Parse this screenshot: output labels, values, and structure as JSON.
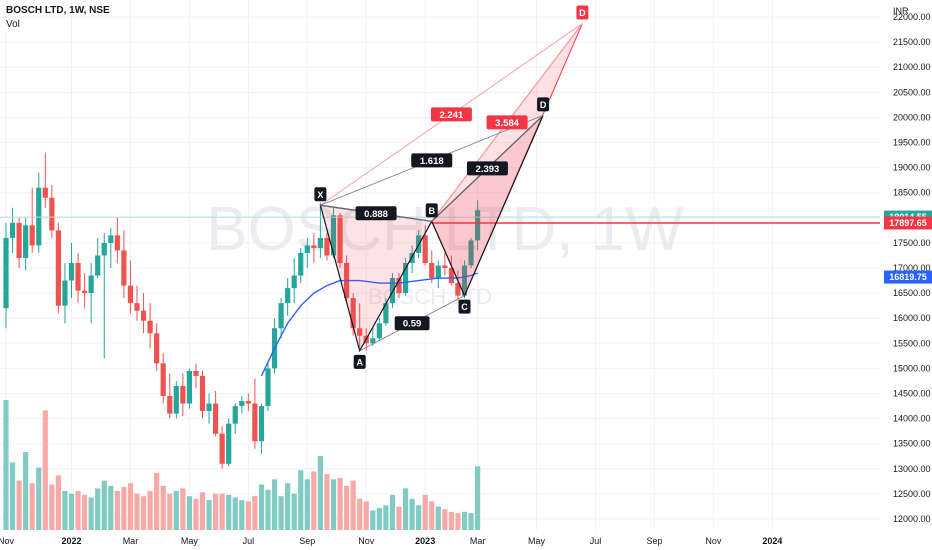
{
  "header": {
    "symbol_line": "BOSCH LTD, 1W, NSE",
    "volume_label": "Vol",
    "currency": "INR",
    "watermark": "BOSCH LTD, 1W",
    "sub_watermark": "BOSCH LTD"
  },
  "chart_data": {
    "type": "candlestick",
    "title": "BOSCH LTD, 1W, NSE",
    "ylabel": "INR",
    "ylim": [
      11800,
      22300
    ],
    "y_ticks": [
      12000,
      12500,
      13000,
      13500,
      14000,
      14500,
      15000,
      15500,
      16000,
      16500,
      17000,
      17500,
      18000,
      18500,
      19000,
      19500,
      20000,
      20500,
      21000,
      21500,
      22000
    ],
    "x_tick_labels": [
      "Nov",
      "2022",
      "Mar",
      "May",
      "Jul",
      "Sep",
      "Nov",
      "2023",
      "Mar",
      "May",
      "Jul",
      "Sep",
      "Nov",
      "2024"
    ],
    "x_tick_positions": [
      -58,
      -48,
      -39,
      -30,
      -21,
      -12,
      -3,
      6,
      14,
      23,
      32,
      41,
      50,
      59
    ],
    "grid": true,
    "colors": {
      "up": "#26a69a",
      "down": "#ef5350",
      "vol_up": "#80cbc4",
      "vol_down": "#f7a9a7",
      "ma": "#2962ff",
      "pattern_black": "#131722",
      "pattern_red": "#f23645",
      "price_line": "#f23645"
    },
    "candles": [
      {
        "o": 16200,
        "h": 17900,
        "l": 15800,
        "c": 17600,
        "v": 100
      },
      {
        "o": 17600,
        "h": 18200,
        "l": 17300,
        "c": 17900,
        "v": 52
      },
      {
        "o": 17900,
        "h": 18000,
        "l": 17000,
        "c": 17200,
        "v": 38
      },
      {
        "o": 17200,
        "h": 18000,
        "l": 16950,
        "c": 17850,
        "v": 60
      },
      {
        "o": 17850,
        "h": 18600,
        "l": 17300,
        "c": 17450,
        "v": 36
      },
      {
        "o": 17450,
        "h": 18900,
        "l": 17300,
        "c": 18600,
        "v": 48
      },
      {
        "o": 18600,
        "h": 19300,
        "l": 18200,
        "c": 18400,
        "v": 92
      },
      {
        "o": 18400,
        "h": 18650,
        "l": 17600,
        "c": 17750,
        "v": 35
      },
      {
        "o": 17750,
        "h": 17900,
        "l": 16100,
        "c": 16250,
        "v": 42
      },
      {
        "o": 16250,
        "h": 17100,
        "l": 15900,
        "c": 16750,
        "v": 30
      },
      {
        "o": 16750,
        "h": 17500,
        "l": 16400,
        "c": 17100,
        "v": 28
      },
      {
        "o": 17100,
        "h": 17300,
        "l": 16300,
        "c": 16550,
        "v": 30
      },
      {
        "o": 16550,
        "h": 16900,
        "l": 16200,
        "c": 16500,
        "v": 27
      },
      {
        "o": 16500,
        "h": 17100,
        "l": 15900,
        "c": 16850,
        "v": 25
      },
      {
        "o": 16850,
        "h": 17600,
        "l": 16800,
        "c": 17250,
        "v": 32
      },
      {
        "o": 17250,
        "h": 17700,
        "l": 15200,
        "c": 17500,
        "v": 38
      },
      {
        "o": 17500,
        "h": 17800,
        "l": 17000,
        "c": 17650,
        "v": 34
      },
      {
        "o": 17650,
        "h": 18000,
        "l": 17100,
        "c": 17350,
        "v": 30
      },
      {
        "o": 17350,
        "h": 17750,
        "l": 16400,
        "c": 16650,
        "v": 33
      },
      {
        "o": 16650,
        "h": 17150,
        "l": 16100,
        "c": 16300,
        "v": 36
      },
      {
        "o": 16300,
        "h": 16650,
        "l": 15950,
        "c": 16150,
        "v": 28
      },
      {
        "o": 16150,
        "h": 16500,
        "l": 15700,
        "c": 15950,
        "v": 26
      },
      {
        "o": 15950,
        "h": 16300,
        "l": 15400,
        "c": 15700,
        "v": 30
      },
      {
        "o": 15700,
        "h": 15900,
        "l": 14950,
        "c": 15100,
        "v": 44
      },
      {
        "o": 15100,
        "h": 15300,
        "l": 14300,
        "c": 14450,
        "v": 34
      },
      {
        "o": 14450,
        "h": 14900,
        "l": 14000,
        "c": 14100,
        "v": 28
      },
      {
        "o": 14100,
        "h": 14750,
        "l": 14000,
        "c": 14650,
        "v": 30
      },
      {
        "o": 14650,
        "h": 14900,
        "l": 14050,
        "c": 14300,
        "v": 32
      },
      {
        "o": 14300,
        "h": 15000,
        "l": 14200,
        "c": 14950,
        "v": 26
      },
      {
        "o": 14950,
        "h": 15100,
        "l": 14600,
        "c": 14850,
        "v": 24
      },
      {
        "o": 14850,
        "h": 14950,
        "l": 14000,
        "c": 14150,
        "v": 29
      },
      {
        "o": 14150,
        "h": 14500,
        "l": 13900,
        "c": 14300,
        "v": 23
      },
      {
        "o": 14300,
        "h": 14550,
        "l": 13650,
        "c": 13700,
        "v": 28
      },
      {
        "o": 13700,
        "h": 13850,
        "l": 13000,
        "c": 13100,
        "v": 28
      },
      {
        "o": 13100,
        "h": 14000,
        "l": 13050,
        "c": 13900,
        "v": 27
      },
      {
        "o": 13900,
        "h": 14300,
        "l": 13700,
        "c": 14250,
        "v": 25
      },
      {
        "o": 14250,
        "h": 14450,
        "l": 14100,
        "c": 14350,
        "v": 23
      },
      {
        "o": 14350,
        "h": 14500,
        "l": 14150,
        "c": 14300,
        "v": 22
      },
      {
        "o": 14300,
        "h": 14800,
        "l": 13400,
        "c": 13550,
        "v": 26
      },
      {
        "o": 13550,
        "h": 14300,
        "l": 13300,
        "c": 14250,
        "v": 35
      },
      {
        "o": 14250,
        "h": 15100,
        "l": 14150,
        "c": 15000,
        "v": 31
      },
      {
        "o": 15000,
        "h": 16000,
        "l": 14900,
        "c": 15800,
        "v": 39
      },
      {
        "o": 15800,
        "h": 16400,
        "l": 15600,
        "c": 16300,
        "v": 26
      },
      {
        "o": 16300,
        "h": 16800,
        "l": 16050,
        "c": 16600,
        "v": 36
      },
      {
        "o": 16600,
        "h": 17200,
        "l": 16300,
        "c": 16850,
        "v": 28
      },
      {
        "o": 16850,
        "h": 17400,
        "l": 16700,
        "c": 17300,
        "v": 46
      },
      {
        "o": 17300,
        "h": 17600,
        "l": 17000,
        "c": 17450,
        "v": 39
      },
      {
        "o": 17450,
        "h": 17700,
        "l": 17100,
        "c": 17400,
        "v": 45
      },
      {
        "o": 17400,
        "h": 18300,
        "l": 17200,
        "c": 17600,
        "v": 57
      },
      {
        "o": 17600,
        "h": 17700,
        "l": 17150,
        "c": 17250,
        "v": 43
      },
      {
        "o": 17250,
        "h": 18200,
        "l": 17200,
        "c": 18050,
        "v": 39
      },
      {
        "o": 18050,
        "h": 18100,
        "l": 17000,
        "c": 17100,
        "v": 40
      },
      {
        "o": 17100,
        "h": 17250,
        "l": 16300,
        "c": 16400,
        "v": 34
      },
      {
        "o": 16400,
        "h": 16500,
        "l": 15650,
        "c": 15800,
        "v": 38
      },
      {
        "o": 15800,
        "h": 16300,
        "l": 15400,
        "c": 15650,
        "v": 24
      },
      {
        "o": 15650,
        "h": 15800,
        "l": 15350,
        "c": 15500,
        "v": 22
      },
      {
        "o": 15500,
        "h": 15800,
        "l": 15450,
        "c": 15600,
        "v": 15
      },
      {
        "o": 15600,
        "h": 16000,
        "l": 15550,
        "c": 15900,
        "v": 17
      },
      {
        "o": 15900,
        "h": 16400,
        "l": 15850,
        "c": 16300,
        "v": 19
      },
      {
        "o": 16300,
        "h": 16900,
        "l": 16200,
        "c": 16800,
        "v": 27
      },
      {
        "o": 16800,
        "h": 16900,
        "l": 16400,
        "c": 16500,
        "v": 18
      },
      {
        "o": 16500,
        "h": 17200,
        "l": 16450,
        "c": 17100,
        "v": 32
      },
      {
        "o": 17100,
        "h": 17450,
        "l": 16900,
        "c": 17300,
        "v": 24
      },
      {
        "o": 17300,
        "h": 17750,
        "l": 17200,
        "c": 17650,
        "v": 19
      },
      {
        "o": 17650,
        "h": 17850,
        "l": 17050,
        "c": 17100,
        "v": 27
      },
      {
        "o": 17100,
        "h": 17350,
        "l": 16700,
        "c": 16800,
        "v": 22
      },
      {
        "o": 16800,
        "h": 17150,
        "l": 16600,
        "c": 17050,
        "v": 18
      },
      {
        "o": 17050,
        "h": 17300,
        "l": 16850,
        "c": 17000,
        "v": 16
      },
      {
        "o": 17000,
        "h": 17250,
        "l": 16650,
        "c": 16700,
        "v": 14
      },
      {
        "o": 16700,
        "h": 16950,
        "l": 16350,
        "c": 16450,
        "v": 13
      },
      {
        "o": 16450,
        "h": 17150,
        "l": 16400,
        "c": 17050,
        "v": 14
      },
      {
        "o": 17050,
        "h": 17600,
        "l": 17000,
        "c": 17550,
        "v": 13
      },
      {
        "o": 17550,
        "h": 18350,
        "l": 17350,
        "c": 18150,
        "v": 49
      }
    ],
    "moving_average": [
      {
        "i": 39,
        "v": 14850
      },
      {
        "i": 41,
        "v": 15400
      },
      {
        "i": 43,
        "v": 15900
      },
      {
        "i": 45,
        "v": 16250
      },
      {
        "i": 47,
        "v": 16500
      },
      {
        "i": 49,
        "v": 16650
      },
      {
        "i": 51,
        "v": 16750
      },
      {
        "i": 54,
        "v": 16750
      },
      {
        "i": 57,
        "v": 16700
      },
      {
        "i": 60,
        "v": 16700
      },
      {
        "i": 63,
        "v": 16750
      },
      {
        "i": 66,
        "v": 16800
      },
      {
        "i": 69,
        "v": 16800
      },
      {
        "i": 71,
        "v": 16850
      },
      {
        "i": 72,
        "v": 16900
      }
    ],
    "last_price": 17897.65,
    "price_labels": [
      {
        "text": "18014.55",
        "value": 18014.55,
        "color": "#26a69a"
      },
      {
        "text": "17897.65",
        "value": 17897.65,
        "color": "#f23645"
      },
      {
        "text": "16819.75",
        "value": 16819.75,
        "color": "#2962ff"
      }
    ],
    "reference_line_value": 18014.55,
    "pattern_black": {
      "points": [
        {
          "name": "X",
          "i": 48,
          "p": 18250
        },
        {
          "name": "A",
          "i": 54,
          "p": 15350
        },
        {
          "name": "B",
          "i": 65,
          "p": 17930
        },
        {
          "name": "C",
          "i": 70,
          "p": 16450
        },
        {
          "name": "D",
          "i": 82,
          "p": 20040
        }
      ],
      "ratios": [
        {
          "text": "0.888",
          "from": "X",
          "to": "B"
        },
        {
          "text": "0.59",
          "from": "A",
          "to": "C"
        },
        {
          "text": "1.618",
          "from": "X",
          "to": "D"
        },
        {
          "text": "2.393",
          "from": "B",
          "to": "D"
        }
      ]
    },
    "pattern_red": {
      "points": [
        {
          "name": "X",
          "i": 48,
          "p": 18250
        },
        {
          "name": "B",
          "i": 65,
          "p": 17930
        },
        {
          "name": "C",
          "i": 70,
          "p": 16450
        },
        {
          "name": "D",
          "i": 88,
          "p": 21870
        }
      ],
      "ratios": [
        {
          "text": "2.241",
          "from": "X",
          "to": "D"
        },
        {
          "text": "3.584",
          "from": "B",
          "to": "D"
        }
      ]
    }
  }
}
